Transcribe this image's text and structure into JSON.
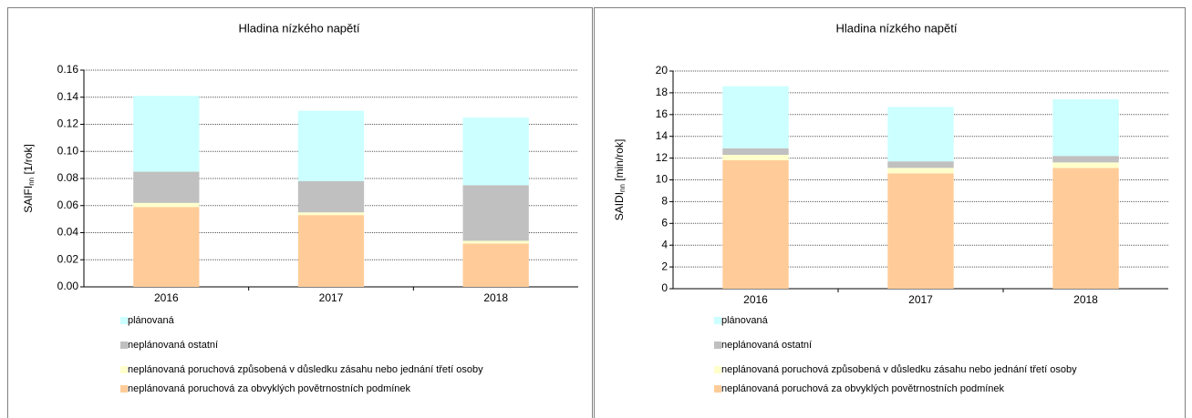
{
  "chart_data": [
    {
      "type": "bar",
      "stacked": true,
      "title": "Hladina nízkého napětí",
      "ylabel": "SAIFI",
      "ylabel_sub": "nn",
      "ylabel_unit": " [1/rok]",
      "categories": [
        "2016",
        "2017",
        "2018"
      ],
      "series": [
        {
          "name": "neplánovaná poruchová za obvyklých povětrnostních podmínek",
          "color": "#ffcc99",
          "values": [
            0.059,
            0.053,
            0.032
          ]
        },
        {
          "name": "neplánovaná poruchová způsobená v důsledku zásahu nebo jednání třetí osoby",
          "color": "#ffffcc",
          "values": [
            0.003,
            0.002,
            0.002
          ]
        },
        {
          "name": "neplánovaná ostatní",
          "color": "#c0c0c0",
          "values": [
            0.023,
            0.023,
            0.041
          ]
        },
        {
          "name": "plánovaná",
          "color": "#ccffff",
          "values": [
            0.056,
            0.052,
            0.05
          ]
        }
      ],
      "ylim": [
        0,
        0.16
      ],
      "yticks": [
        {
          "value": 0,
          "label": "0.00"
        },
        0.02,
        0.04,
        0.06,
        0.08,
        {
          "value": 0.1,
          "label": "0.10"
        },
        0.12,
        0.14,
        0.16
      ],
      "grid": true
    },
    {
      "type": "bar",
      "stacked": true,
      "title": "Hladina nízkého napětí",
      "ylabel": "SAIDI",
      "ylabel_sub": "nn",
      "ylabel_unit": " [min/rok]",
      "categories": [
        "2016",
        "2017",
        "2018"
      ],
      "series": [
        {
          "name": "neplánovaná poruchová za obvyklých povětrnostních podmínek",
          "color": "#ffcc99",
          "values": [
            11.8,
            10.6,
            11.1
          ]
        },
        {
          "name": "neplánovaná poruchová způsobená v důsledku zásahu nebo jednání třetí osoby",
          "color": "#ffffcc",
          "values": [
            0.5,
            0.5,
            0.5
          ]
        },
        {
          "name": "neplánovaná ostatní",
          "color": "#c0c0c0",
          "values": [
            0.6,
            0.6,
            0.6
          ]
        },
        {
          "name": "plánovaná",
          "color": "#ccffff",
          "values": [
            5.7,
            5.0,
            5.2
          ]
        }
      ],
      "ylim": [
        0,
        20
      ],
      "yticks": [
        0,
        2,
        4,
        6,
        8,
        10,
        12,
        14,
        16,
        18,
        20
      ],
      "grid": true
    }
  ]
}
